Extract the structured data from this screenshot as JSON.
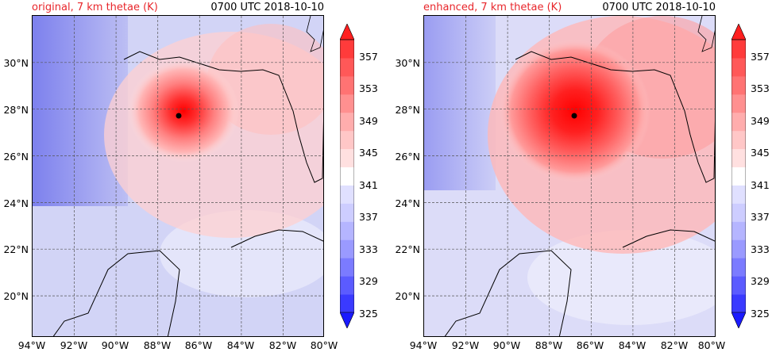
{
  "panels": [
    {
      "title_left": "original, 7 km thetae (K)",
      "title_right": "0700 UTC 2018-10-10",
      "title_left_color": "#e8262b"
    },
    {
      "title_left": "enhanced, 7 km thetae (K)",
      "title_right": "0700 UTC 2018-10-10",
      "title_left_color": "#e8262b"
    }
  ],
  "map": {
    "lat_labels": [
      "30°N",
      "28°N",
      "26°N",
      "24°N",
      "22°N",
      "20°N"
    ],
    "lon_labels": [
      "94°W",
      "92°W",
      "90°W",
      "88°W",
      "86°W",
      "84°W",
      "82°W",
      "80°W"
    ],
    "lat_range": [
      18.2,
      32.0
    ],
    "lon_range": [
      -94,
      -80
    ],
    "storm_center": {
      "lat": 27.8,
      "lon": -87.0
    }
  },
  "colorbar": {
    "ticks": [
      "357",
      "353",
      "349",
      "345",
      "341",
      "337",
      "333",
      "329",
      "325"
    ],
    "min": 325,
    "max": 359,
    "step": 2,
    "extend": "both",
    "colors": [
      "#1a1aff",
      "#3a3aff",
      "#5b5bff",
      "#7b7bff",
      "#9a9aff",
      "#b5b5ff",
      "#cdcdff",
      "#e0e0ff",
      "#ffffff",
      "#ffe0e0",
      "#ffc7c7",
      "#ffadad",
      "#ff9090",
      "#ff7373",
      "#ff5858",
      "#ff3b3b",
      "#ff1f1f"
    ]
  },
  "colors": {
    "cool_bg": "#c7c9f5",
    "deep_blue": "#7478ee",
    "warm": "#ff8c8c",
    "core": "#ff0000",
    "grid": "#555555"
  }
}
